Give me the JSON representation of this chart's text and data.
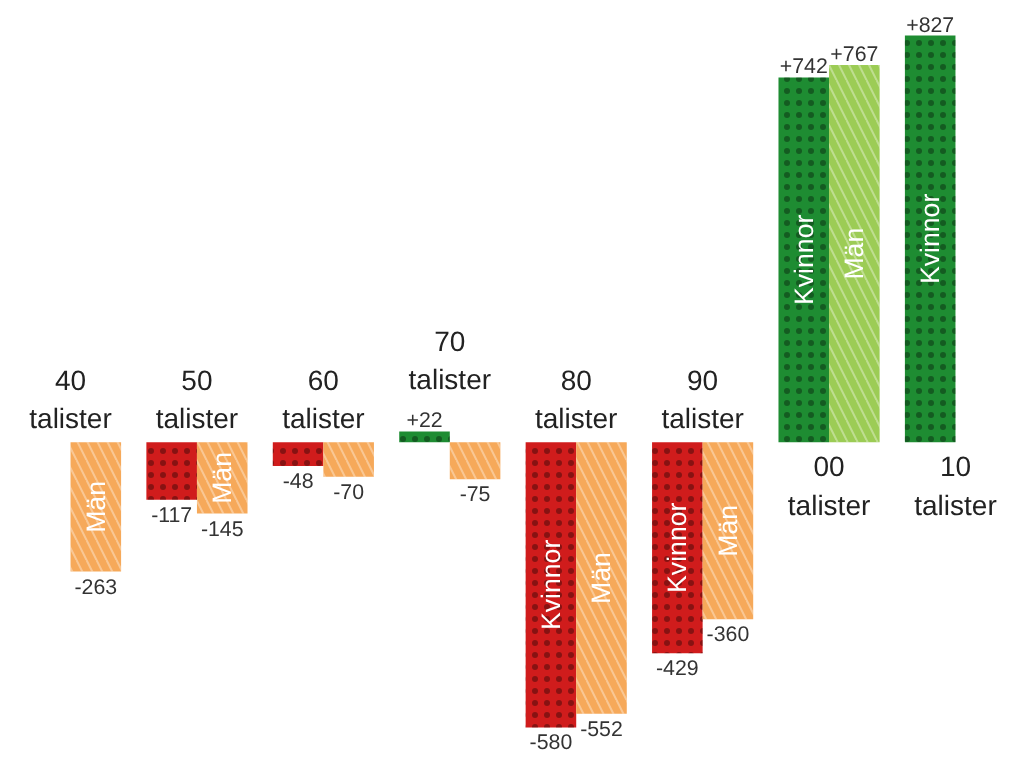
{
  "chart_data": {
    "type": "bar",
    "categories": [
      "40\ntalister",
      "50\ntalister",
      "60\ntalister",
      "70\ntalister",
      "80\ntalister",
      "90\ntalister",
      "00\ntalister",
      "10\ntalister"
    ],
    "series": [
      {
        "name": "Kvinnor",
        "colors": [
          null,
          "#d01c1c",
          "#d01c1c",
          "#1e8c32",
          "#d01c1c",
          "#d01c1c",
          "#1e8c32",
          "#1e8c32"
        ],
        "values": [
          null,
          -117,
          -48,
          22,
          -580,
          -429,
          742,
          827
        ],
        "value_labels": [
          null,
          "-117",
          "-48",
          "+22",
          "-580",
          "-429",
          "+742",
          "+827"
        ]
      },
      {
        "name": "Män",
        "colors": [
          "#f6a95a",
          "#f6a95a",
          "#f6a95a",
          "#f6a95a",
          "#f6a95a",
          "#f6a95a",
          "#9ccc55",
          null
        ],
        "values": [
          -263,
          -145,
          -70,
          -75,
          -552,
          -360,
          767,
          null
        ],
        "value_labels": [
          "-263",
          "-145",
          "-70",
          "-75",
          "-552",
          "-360",
          "+767",
          null
        ]
      }
    ],
    "grid": false
  }
}
